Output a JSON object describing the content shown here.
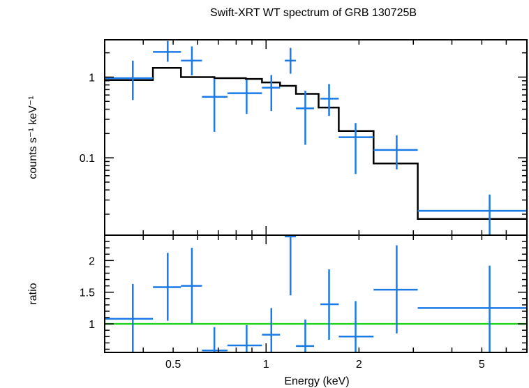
{
  "chart_data": [
    {
      "type": "scatter",
      "title": "Swift-XRT WT spectrum of GRB 130725B",
      "xlabel": "Energy (keV)",
      "ylabel": "counts s⁻¹ keV⁻¹",
      "xscale": "log",
      "yscale": "log",
      "xlim": [
        0.3,
        7.0
      ],
      "ylim": [
        0.011,
        2.9
      ],
      "x_ticks": [
        {
          "value": 0.5,
          "label": "0.5"
        },
        {
          "value": 1,
          "label": "1"
        },
        {
          "value": 2,
          "label": "2"
        },
        {
          "value": 5,
          "label": "5"
        }
      ],
      "y_ticks": [
        {
          "value": 0.1,
          "label": "0.1"
        },
        {
          "value": 1,
          "label": "1"
        }
      ],
      "series": [
        {
          "name": "data",
          "color": "#1a7ae6",
          "points": [
            {
              "x": 0.37,
              "xlo": 0.3,
              "xhi": 0.43,
              "y": 0.97,
              "ylo": 0.52,
              "yhi": 1.6
            },
            {
              "x": 0.48,
              "xlo": 0.43,
              "xhi": 0.53,
              "y": 2.05,
              "ylo": 1.55,
              "yhi": 2.8
            },
            {
              "x": 0.575,
              "xlo": 0.53,
              "xhi": 0.62,
              "y": 1.6,
              "ylo": 1.05,
              "yhi": 2.4
            },
            {
              "x": 0.68,
              "xlo": 0.62,
              "xhi": 0.75,
              "y": 0.57,
              "ylo": 0.21,
              "yhi": 0.95
            },
            {
              "x": 0.865,
              "xlo": 0.75,
              "xhi": 0.97,
              "y": 0.63,
              "ylo": 0.35,
              "yhi": 0.93
            },
            {
              "x": 1.04,
              "xlo": 0.97,
              "xhi": 1.11,
              "y": 0.74,
              "ylo": 0.38,
              "yhi": 1.06
            },
            {
              "x": 1.2,
              "xlo": 1.15,
              "xhi": 1.25,
              "y": 1.6,
              "ylo": 1.1,
              "yhi": 2.3
            },
            {
              "x": 1.34,
              "xlo": 1.25,
              "xhi": 1.43,
              "y": 0.41,
              "ylo": 0.145,
              "yhi": 0.68
            },
            {
              "x": 1.6,
              "xlo": 1.5,
              "xhi": 1.72,
              "y": 0.54,
              "ylo": 0.33,
              "yhi": 0.82
            },
            {
              "x": 1.95,
              "xlo": 1.72,
              "xhi": 2.23,
              "y": 0.18,
              "ylo": 0.063,
              "yhi": 0.27
            },
            {
              "x": 2.65,
              "xlo": 2.23,
              "xhi": 3.1,
              "y": 0.125,
              "ylo": 0.072,
              "yhi": 0.19
            },
            {
              "x": 5.3,
              "xlo": 3.1,
              "xhi": 7.0,
              "y": 0.022,
              "ylo": 0.011,
              "yhi": 0.035
            }
          ]
        },
        {
          "name": "model",
          "type": "step",
          "color": "#000000",
          "steps": [
            {
              "xlo": 0.3,
              "xhi": 0.43,
              "y": 0.92
            },
            {
              "xlo": 0.43,
              "xhi": 0.53,
              "y": 1.3
            },
            {
              "xlo": 0.53,
              "xhi": 0.68,
              "y": 1.0
            },
            {
              "xlo": 0.68,
              "xhi": 0.86,
              "y": 0.97
            },
            {
              "xlo": 0.86,
              "xhi": 0.97,
              "y": 0.95
            },
            {
              "xlo": 0.97,
              "xhi": 1.11,
              "y": 0.86
            },
            {
              "xlo": 1.11,
              "xhi": 1.25,
              "y": 0.78
            },
            {
              "xlo": 1.25,
              "xhi": 1.48,
              "y": 0.62
            },
            {
              "xlo": 1.48,
              "xhi": 1.72,
              "y": 0.42
            },
            {
              "xlo": 1.72,
              "xhi": 2.23,
              "y": 0.215
            },
            {
              "xlo": 2.23,
              "xhi": 3.1,
              "y": 0.085
            },
            {
              "xlo": 3.1,
              "xhi": 7.0,
              "y": 0.0175
            }
          ]
        }
      ]
    },
    {
      "type": "scatter",
      "title": "",
      "xlabel": "Energy (keV)",
      "ylabel": "ratio",
      "xscale": "log",
      "yscale": "linear",
      "xlim": [
        0.3,
        7.0
      ],
      "ylim": [
        0.55,
        2.4
      ],
      "x_ticks": [
        {
          "value": 0.5,
          "label": "0.5"
        },
        {
          "value": 1,
          "label": "1"
        },
        {
          "value": 2,
          "label": "2"
        },
        {
          "value": 5,
          "label": "5"
        }
      ],
      "y_ticks": [
        {
          "value": 1,
          "label": "1"
        },
        {
          "value": 1.5,
          "label": "1.5"
        },
        {
          "value": 2,
          "label": "2"
        }
      ],
      "reference_line": {
        "y": 1.0,
        "color": "#1fd31f"
      },
      "series": [
        {
          "name": "ratio",
          "color": "#1a7ae6",
          "points": [
            {
              "x": 0.37,
              "xlo": 0.3,
              "xhi": 0.43,
              "y": 1.08,
              "ylo": 0.55,
              "yhi": 1.63
            },
            {
              "x": 0.48,
              "xlo": 0.43,
              "xhi": 0.53,
              "y": 1.58,
              "ylo": 1.05,
              "yhi": 2.12
            },
            {
              "x": 0.575,
              "xlo": 0.53,
              "xhi": 0.62,
              "y": 1.6,
              "ylo": 1.0,
              "yhi": 2.2
            },
            {
              "x": 0.68,
              "xlo": 0.62,
              "xhi": 0.75,
              "y": 0.58,
              "ylo": 0.55,
              "yhi": 0.95
            },
            {
              "x": 0.865,
              "xlo": 0.75,
              "xhi": 0.97,
              "y": 0.66,
              "ylo": 0.55,
              "yhi": 0.98
            },
            {
              "x": 1.04,
              "xlo": 0.97,
              "xhi": 1.11,
              "y": 0.83,
              "ylo": 0.55,
              "yhi": 1.25
            },
            {
              "x": 1.2,
              "xlo": 1.15,
              "xhi": 1.25,
              "y": 2.38,
              "ylo": 1.45,
              "yhi": 2.4
            },
            {
              "x": 1.34,
              "xlo": 1.25,
              "xhi": 1.43,
              "y": 0.65,
              "ylo": 0.55,
              "yhi": 1.07
            },
            {
              "x": 1.6,
              "xlo": 1.5,
              "xhi": 1.72,
              "y": 1.31,
              "ylo": 0.75,
              "yhi": 1.86
            },
            {
              "x": 1.95,
              "xlo": 1.72,
              "xhi": 2.23,
              "y": 0.8,
              "ylo": 0.55,
              "yhi": 1.36
            },
            {
              "x": 2.65,
              "xlo": 2.23,
              "xhi": 3.1,
              "y": 1.54,
              "ylo": 0.85,
              "yhi": 2.24
            },
            {
              "x": 5.3,
              "xlo": 3.1,
              "xhi": 7.0,
              "y": 1.25,
              "ylo": 0.55,
              "yhi": 1.92
            }
          ]
        }
      ]
    }
  ]
}
